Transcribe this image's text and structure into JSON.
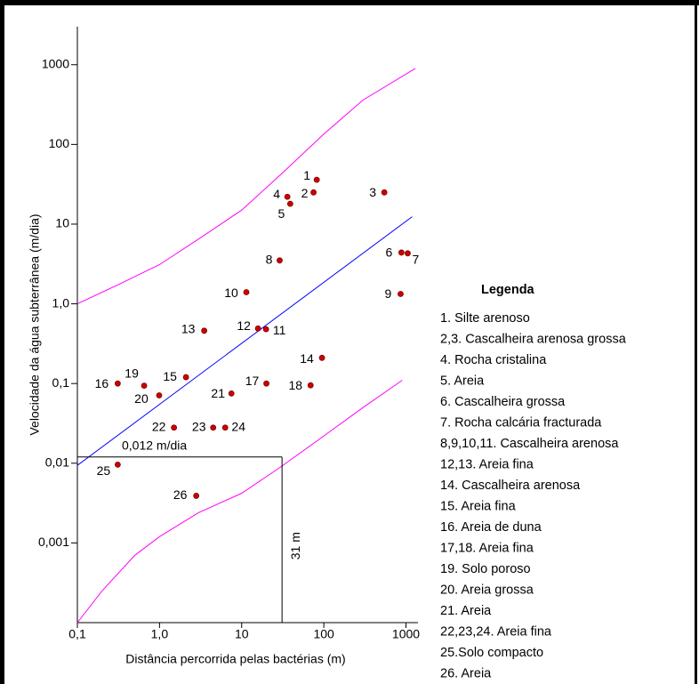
{
  "chart_data": {
    "type": "scatter",
    "x_label": "Distância percorrida pelas bactérias (m)",
    "y_label": "Velocidade da água subterrânea (m/dia)",
    "xlog": true,
    "ylog": true,
    "xlim": [
      0.1,
      1400
    ],
    "ylim": [
      0.0001,
      3000
    ],
    "xticks": [
      {
        "value": 0.1,
        "label": "0,1"
      },
      {
        "value": 1,
        "label": "1,0"
      },
      10,
      100,
      1000
    ],
    "yticks": [
      {
        "value": 0.001,
        "label": "0,001"
      },
      {
        "value": 0.01,
        "label": "0,01"
      },
      {
        "value": 0.1,
        "label": "0,1"
      },
      {
        "value": 1,
        "label": "1,0"
      },
      10,
      100,
      1000
    ],
    "point_color": "#cc0000",
    "labels": [
      "1",
      "2",
      "3",
      "4",
      "5",
      "6",
      "7",
      "8",
      "9",
      "10",
      "11",
      "12",
      "13",
      "14",
      "15",
      "16",
      "17",
      "18",
      "19",
      "20",
      "21",
      "22",
      "23",
      "24",
      "25",
      "26"
    ],
    "x": [
      82,
      75,
      545,
      36,
      39,
      880,
      1050,
      29,
      860,
      11.4,
      19.8,
      15.8,
      3.5,
      95,
      2.1,
      0.31,
      20,
      69,
      0.65,
      0.99,
      7.5,
      1.5,
      4.5,
      6.3,
      0.31,
      2.8
    ],
    "values": [
      36,
      25,
      25,
      22,
      18,
      4.4,
      4.3,
      3.5,
      1.33,
      1.4,
      0.48,
      0.49,
      0.46,
      0.21,
      0.12,
      0.1,
      0.1,
      0.095,
      0.094,
      0.071,
      0.075,
      0.028,
      0.028,
      0.028,
      0.0096,
      0.0039
    ],
    "lines": [
      {
        "color": "#ff00ff",
        "x": [
          0.1,
          0.3,
          1,
          3,
          10,
          30,
          100,
          300,
          1300
        ],
        "y": [
          1,
          1.7,
          3.1,
          6.5,
          15,
          42,
          135,
          360,
          900
        ]
      },
      {
        "color": "#0000ff",
        "x": [
          0.1,
          1190
        ],
        "y": [
          0.0094,
          12.4
        ]
      },
      {
        "color": "#ff00ff",
        "x": [
          0.1,
          0.2,
          0.5,
          1,
          3,
          10,
          30,
          100,
          300,
          900
        ],
        "y": [
          0.0001,
          0.00025,
          0.0007,
          0.0012,
          0.0024,
          0.0042,
          0.009,
          0.022,
          0.05,
          0.11
        ]
      }
    ],
    "reference": {
      "x": 31,
      "y": 0.012,
      "x_label": "31 m",
      "y_label": "0,012 m/dia"
    },
    "legend": {
      "title": "Legenda",
      "items": [
        "1. Silte arenoso",
        "2,3. Cascalheira arenosa grossa",
        "4. Rocha cristalina",
        "5. Areia",
        "6. Cascalheira grossa",
        "7. Rocha calcária fracturada",
        "8,9,10,11. Cascalheira arenosa",
        "12,13. Areia fina",
        "14. Cascalheira arenosa",
        "15. Areia fina",
        "16. Areia de duna",
        "17,18. Areia fina",
        "19. Solo poroso",
        "20. Areia grossa",
        "21. Areia",
        "22,23,24. Areia fina",
        "25.Solo compacto",
        "26. Areia"
      ]
    }
  }
}
